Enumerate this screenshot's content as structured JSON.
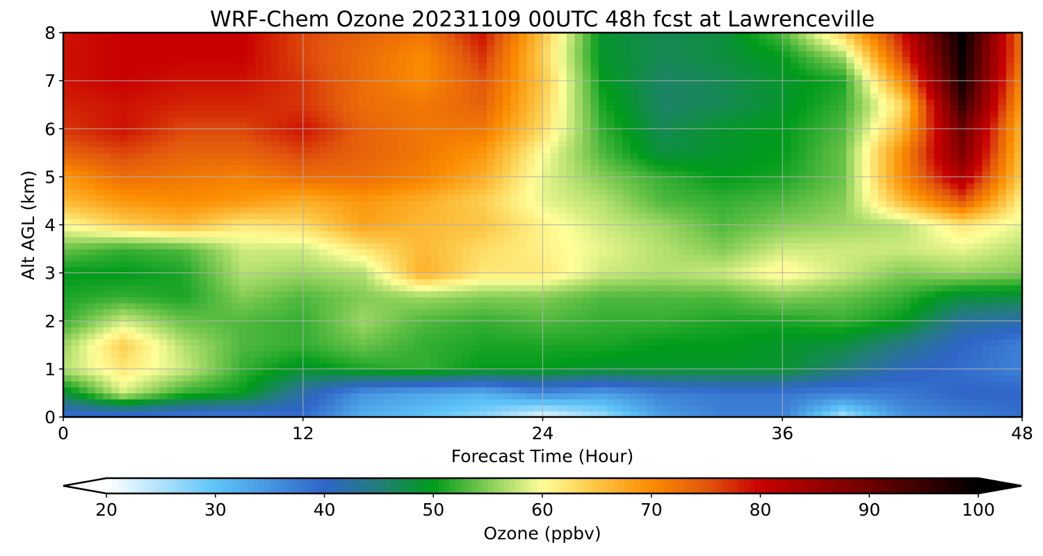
{
  "chart_data": {
    "type": "heatmap",
    "title": "WRF-Chem Ozone  20231109 00UTC 48h fcst at Lawrenceville",
    "xlabel": "Forecast Time (Hour)",
    "ylabel": "Alt AGL (km)",
    "xlim": [
      0,
      48
    ],
    "ylim": [
      0,
      8
    ],
    "x_ticks": [
      "0",
      "12",
      "24",
      "36",
      "48"
    ],
    "y_ticks": [
      "0",
      "1",
      "2",
      "3",
      "4",
      "5",
      "6",
      "7",
      "8"
    ],
    "grid": true,
    "colorbar": {
      "label": "Ozone  (ppbv)",
      "range": [
        20,
        100
      ],
      "ticks": [
        "20",
        "30",
        "40",
        "50",
        "60",
        "70",
        "80",
        "90",
        "100"
      ],
      "extend": "both",
      "colors": [
        {
          "v": 20,
          "c": "#ffffff"
        },
        {
          "v": 30,
          "c": "#5ec4f8"
        },
        {
          "v": 40,
          "c": "#2f65c8"
        },
        {
          "v": 45,
          "c": "#237d7a"
        },
        {
          "v": 50,
          "c": "#009b1a"
        },
        {
          "v": 55,
          "c": "#83cc55"
        },
        {
          "v": 60,
          "c": "#ffff99"
        },
        {
          "v": 65,
          "c": "#fcc442"
        },
        {
          "v": 70,
          "c": "#fb8c00"
        },
        {
          "v": 75,
          "c": "#e2580d"
        },
        {
          "v": 80,
          "c": "#c80000"
        },
        {
          "v": 90,
          "c": "#6e0000"
        },
        {
          "v": 100,
          "c": "#000000"
        }
      ]
    },
    "x_hours": [
      0,
      3,
      6,
      9,
      12,
      15,
      18,
      21,
      24,
      27,
      30,
      33,
      36,
      39,
      42,
      45,
      48
    ],
    "z_km": [
      0,
      0.5,
      1,
      1.5,
      2,
      2.5,
      3,
      3.5,
      4,
      4.5,
      5,
      5.5,
      6,
      6.5,
      7,
      7.5,
      8
    ],
    "ozone_ppbv": [
      [
        38,
        37,
        37,
        37,
        39,
        32,
        30,
        27,
        21,
        26,
        34,
        37,
        37,
        25,
        35,
        37,
        39
      ],
      [
        48,
        58,
        52,
        50,
        42,
        35,
        33,
        32,
        36,
        34,
        37,
        38,
        38,
        37,
        38,
        40,
        40
      ],
      [
        57,
        62,
        58,
        52,
        49,
        51,
        52,
        50,
        50,
        49,
        49,
        49,
        49,
        45,
        41,
        39,
        37
      ],
      [
        56,
        64,
        57,
        53,
        52,
        54,
        52,
        51,
        51,
        51,
        50,
        50,
        49,
        48,
        44,
        40,
        37
      ],
      [
        52,
        58,
        54,
        53,
        52,
        56,
        53,
        52,
        53,
        52,
        52,
        51,
        51,
        52,
        50,
        43,
        42
      ],
      [
        51,
        52,
        51,
        55,
        53,
        55,
        56,
        55,
        55,
        53,
        53,
        53,
        55,
        54,
        52,
        48,
        48
      ],
      [
        50,
        50,
        51,
        57,
        56,
        57,
        67,
        62,
        62,
        58,
        57,
        58,
        61,
        58,
        55,
        56,
        55
      ],
      [
        54,
        52,
        53,
        58,
        58,
        62,
        66,
        63,
        61,
        59,
        57,
        55,
        58,
        58,
        58,
        59,
        57
      ],
      [
        60,
        64,
        66,
        62,
        63,
        68,
        66,
        65,
        61,
        58,
        56,
        53,
        55,
        56,
        57,
        62,
        59
      ],
      [
        66,
        69,
        70,
        69,
        67,
        69,
        67,
        64,
        59,
        57,
        53,
        52,
        53,
        55,
        66,
        75,
        61
      ],
      [
        69,
        73,
        72,
        71,
        73,
        73,
        71,
        67,
        59,
        55,
        52,
        50,
        51,
        54,
        70,
        83,
        64
      ],
      [
        74,
        76,
        74,
        74,
        76,
        74,
        72,
        69,
        60,
        53,
        48,
        49,
        50,
        54,
        70,
        88,
        65
      ],
      [
        77,
        79,
        76,
        76,
        79,
        74,
        72,
        72,
        63,
        52,
        47,
        49,
        50,
        53,
        66,
        90,
        66
      ],
      [
        78,
        79,
        78,
        78,
        77,
        73,
        72,
        74,
        64,
        51,
        46,
        47,
        49,
        52,
        63,
        95,
        68
      ],
      [
        79,
        80,
        79,
        79,
        77,
        73,
        70,
        75,
        65,
        50,
        46,
        47,
        49,
        51,
        70,
        98,
        70
      ],
      [
        79,
        80,
        80,
        80,
        76,
        73,
        70,
        77,
        64,
        49,
        47,
        48,
        50,
        56,
        76,
        99,
        72
      ],
      [
        79,
        80,
        80,
        80,
        76,
        74,
        72,
        79,
        65,
        49,
        47,
        48,
        53,
        64,
        79,
        100,
        72
      ]
    ]
  }
}
